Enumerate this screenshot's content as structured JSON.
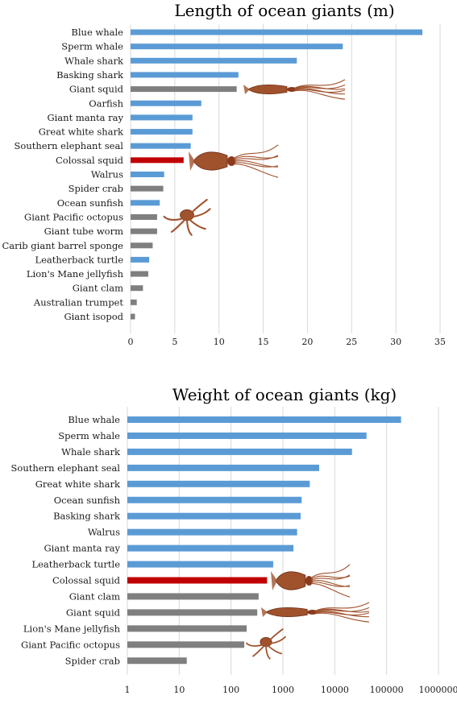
{
  "colors": {
    "whale_fish_bar": "#5b9bd5",
    "invertebrate_bar": "#7f7f7f",
    "highlight_bar": "#c00000",
    "gridline": "#d9d9d9",
    "squid_illustration": "#a0522d"
  },
  "chart_data": [
    {
      "type": "bar",
      "orientation": "horizontal",
      "title": "Length of ocean giants (m)",
      "xlim": [
        0,
        35
      ],
      "xticks": [
        "0",
        "5",
        "10",
        "15",
        "20",
        "25",
        "30",
        "35"
      ],
      "grid": true,
      "categories": [
        "Blue whale",
        "Sperm whale",
        "Whale shark",
        "Basking shark",
        "Giant squid",
        "Oarfish",
        "Giant manta ray",
        "Great white shark",
        "Southern elephant seal",
        "Colossal squid",
        "Walrus",
        "Spider crab",
        "Ocean sunfish",
        "Giant Pacific octopus",
        "Giant tube worm",
        "Carib giant barrel sponge",
        "Leatherback turtle",
        "Lion's Mane jellyfish",
        "Giant clam",
        "Australian trumpet",
        "Giant isopod"
      ],
      "values": [
        33,
        24,
        18.8,
        12.2,
        12,
        8,
        7,
        7,
        6.8,
        6,
        3.8,
        3.7,
        3.3,
        3.0,
        3.0,
        2.5,
        2.1,
        2.0,
        1.4,
        0.7,
        0.5
      ],
      "bar_colors": [
        "blue",
        "blue",
        "blue",
        "blue",
        "gray",
        "blue",
        "blue",
        "blue",
        "blue",
        "red",
        "blue",
        "gray",
        "blue",
        "gray",
        "gray",
        "gray",
        "blue",
        "gray",
        "gray",
        "gray",
        "gray"
      ]
    },
    {
      "type": "bar",
      "orientation": "horizontal",
      "title": "Weight of ocean giants (kg)",
      "xscale": "log",
      "xlim": [
        1,
        1000000
      ],
      "xticks": [
        "1",
        "10",
        "100",
        "1000",
        "10000",
        "100000",
        "1000000"
      ],
      "grid": true,
      "categories": [
        "Blue whale",
        "Sperm whale",
        "Whale shark",
        "Southern elephant seal",
        "Great white shark",
        "Ocean sunfish",
        "Basking shark",
        "Walrus",
        "Giant manta ray",
        "Leatherback turtle",
        "Colossal squid",
        "Giant clam",
        "Giant squid",
        "Lion's Mane jellyfish",
        "Giant Pacific octopus",
        "Spider crab"
      ],
      "values": [
        190000,
        41000,
        21500,
        5000,
        3300,
        2300,
        2200,
        1880,
        1600,
        650,
        495,
        340,
        320,
        200,
        180,
        14
      ],
      "bar_colors": [
        "blue",
        "blue",
        "blue",
        "blue",
        "blue",
        "blue",
        "blue",
        "blue",
        "blue",
        "blue",
        "red",
        "gray",
        "gray",
        "gray",
        "gray",
        "gray"
      ]
    }
  ],
  "illustrations": [
    {
      "chart": 0,
      "depicts": "giant-squid",
      "row": 4
    },
    {
      "chart": 0,
      "depicts": "colossal-squid",
      "row": 9
    },
    {
      "chart": 0,
      "depicts": "octopus",
      "row": 13
    },
    {
      "chart": 1,
      "depicts": "colossal-squid",
      "row": 10
    },
    {
      "chart": 1,
      "depicts": "giant-squid",
      "row": 12
    },
    {
      "chart": 1,
      "depicts": "octopus",
      "row": 14
    }
  ]
}
